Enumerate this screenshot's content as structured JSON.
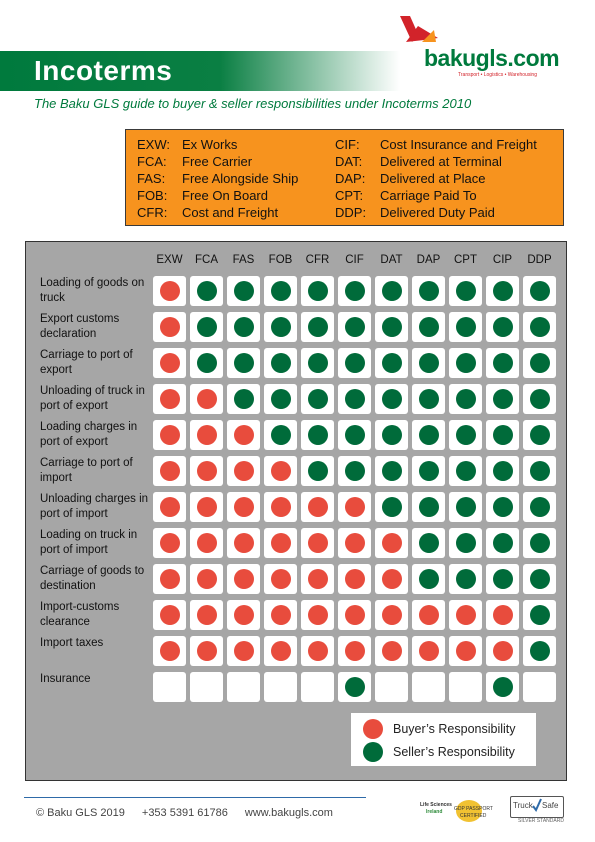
{
  "header": {
    "title": "Incoterms",
    "subtitle": "The Baku GLS guide to buyer & seller responsibilities under Incoterms 2010"
  },
  "logo": {
    "text": "bakugls.com",
    "tagline": "Transport • Logistics • Warehousing"
  },
  "terms_legend": [
    {
      "code": "EXW:",
      "name": "Ex Works"
    },
    {
      "code": "FCA:",
      "name": "Free Carrier"
    },
    {
      "code": "FAS:",
      "name": "Free Alongside Ship"
    },
    {
      "code": "FOB:",
      "name": "Free On Board"
    },
    {
      "code": "CFR:",
      "name": "Cost and Freight"
    },
    {
      "code": "CIF:",
      "name": "Cost Insurance and Freight"
    },
    {
      "code": "DAT:",
      "name": "Delivered at Terminal"
    },
    {
      "code": "DAP:",
      "name": "Delivered at Place"
    },
    {
      "code": "CPT:",
      "name": "Carriage Paid To"
    },
    {
      "code": "DDP:",
      "name": "Delivered Duty Paid"
    }
  ],
  "matrix": {
    "columns": [
      "EXW",
      "FCA",
      "FAS",
      "FOB",
      "CFR",
      "CIF",
      "DAT",
      "DAP",
      "CPT",
      "CIP",
      "DDP"
    ],
    "rows": [
      {
        "label": "Loading of goods on truck",
        "cells": [
          "B",
          "S",
          "S",
          "S",
          "S",
          "S",
          "S",
          "S",
          "S",
          "S",
          "S"
        ]
      },
      {
        "label": "Export customs declaration",
        "cells": [
          "B",
          "S",
          "S",
          "S",
          "S",
          "S",
          "S",
          "S",
          "S",
          "S",
          "S"
        ]
      },
      {
        "label": "Carriage to port of export",
        "cells": [
          "B",
          "S",
          "S",
          "S",
          "S",
          "S",
          "S",
          "S",
          "S",
          "S",
          "S"
        ]
      },
      {
        "label": "Unloading of truck in port of export",
        "cells": [
          "B",
          "B",
          "S",
          "S",
          "S",
          "S",
          "S",
          "S",
          "S",
          "S",
          "S"
        ]
      },
      {
        "label": "Loading charges in port of export",
        "cells": [
          "B",
          "B",
          "B",
          "S",
          "S",
          "S",
          "S",
          "S",
          "S",
          "S",
          "S"
        ]
      },
      {
        "label": "Carriage to port of import",
        "cells": [
          "B",
          "B",
          "B",
          "B",
          "S",
          "S",
          "S",
          "S",
          "S",
          "S",
          "S"
        ]
      },
      {
        "label": "Unloading charges in port of import",
        "cells": [
          "B",
          "B",
          "B",
          "B",
          "B",
          "B",
          "S",
          "S",
          "S",
          "S",
          "S"
        ]
      },
      {
        "label": "Loading on truck in port of import",
        "cells": [
          "B",
          "B",
          "B",
          "B",
          "B",
          "B",
          "B",
          "S",
          "S",
          "S",
          "S"
        ]
      },
      {
        "label": "Carriage of goods to destination",
        "cells": [
          "B",
          "B",
          "B",
          "B",
          "B",
          "B",
          "B",
          "S",
          "S",
          "S",
          "S"
        ]
      },
      {
        "label": "Import-customs clearance",
        "cells": [
          "B",
          "B",
          "B",
          "B",
          "B",
          "B",
          "B",
          "B",
          "B",
          "B",
          "S"
        ]
      },
      {
        "label": "Import taxes",
        "cells": [
          "B",
          "B",
          "B",
          "B",
          "B",
          "B",
          "B",
          "B",
          "B",
          "B",
          "S"
        ]
      },
      {
        "label": "Insurance",
        "cells": [
          "",
          "",
          "",
          "",
          "",
          "S",
          "",
          "",
          "",
          "S",
          ""
        ]
      }
    ]
  },
  "responsibility_legend": {
    "buyer": "Buyer’s Responsibility",
    "seller": "Seller’s Responsibility"
  },
  "colors": {
    "buyer": "#e84c3d",
    "seller": "#006b3a",
    "accent_orange": "#f7931e",
    "brand_green": "#007a3d"
  },
  "footer": {
    "copyright": "© Baku GLS 2019",
    "phone": "+353 5391 61786",
    "website": "www.bakugls.com"
  },
  "badges": {
    "lsi_line1": "Life Sciences",
    "lsi_line2": "Ireland",
    "lsi_line3": "GDP PASSPORT",
    "lsi_line4": "CERTIFIED",
    "trucksafe_line1": "Truck",
    "trucksafe_line2": "Safe",
    "trucksafe_line3": "SILVER STANDARD"
  }
}
